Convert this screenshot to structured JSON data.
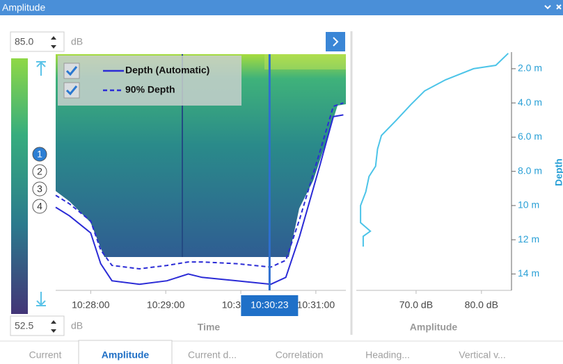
{
  "panel": {
    "title": "Amplitude"
  },
  "scale": {
    "max": "85.0",
    "min": "52.5",
    "unit": "dB",
    "markers": [
      "1",
      "2",
      "3",
      "4"
    ],
    "selected_marker": 0
  },
  "chart_data": [
    {
      "type": "echogram",
      "x_label": "Time",
      "xlim": [
        1652,
        1884
      ],
      "xticks": [
        {
          "value": 1680,
          "label": "10:28:00"
        },
        {
          "value": 1740,
          "label": "10:29:00"
        },
        {
          "value": 1800,
          "label": "10:30:00"
        },
        {
          "value": 1860,
          "label": "10:31:00"
        }
      ],
      "ylim": [
        0.5,
        15
      ],
      "y_inverted": true,
      "cursor": {
        "value": 1823,
        "label": "10:30:23"
      },
      "series": [
        {
          "name": "Depth (Automatic)",
          "color": "#2b2bd6",
          "dashed": false,
          "x": [
            1652,
            1663,
            1680,
            1688,
            1697,
            1719,
            1741,
            1758,
            1769,
            1797,
            1824,
            1836,
            1847,
            1863,
            1874,
            1882
          ],
          "values": [
            10.1,
            10.6,
            11.6,
            13.4,
            14.4,
            14.6,
            14.4,
            14.0,
            14.2,
            14.4,
            14.6,
            14.2,
            11.8,
            7.7,
            4.8,
            4.7
          ]
        },
        {
          "name": "90% Depth",
          "color": "#2b2bd6",
          "dashed": true,
          "x": [
            1652,
            1663,
            1680,
            1688,
            1697,
            1719,
            1741,
            1758,
            1769,
            1797,
            1824,
            1836,
            1847,
            1863,
            1874,
            1882
          ],
          "values": [
            9.4,
            9.9,
            10.9,
            12.6,
            13.5,
            13.7,
            13.5,
            13.3,
            13.3,
            13.4,
            13.6,
            13.2,
            10.8,
            6.9,
            4.2,
            4.0
          ]
        }
      ]
    },
    {
      "type": "line",
      "x_label": "Amplitude",
      "y_label": "Depth",
      "xlim": [
        60.85,
        84.6
      ],
      "xticks": [
        {
          "value": 70,
          "label": "70.0 dB"
        },
        {
          "value": 80,
          "label": "80.0 dB"
        }
      ],
      "ylim": [
        0.5,
        15
      ],
      "y_inverted": true,
      "yticks": [
        {
          "value": 2,
          "label": "2.0 m"
        },
        {
          "value": 4,
          "label": "4.0 m"
        },
        {
          "value": 6,
          "label": "6.0 m"
        },
        {
          "value": 8,
          "label": "8.0 m"
        },
        {
          "value": 10,
          "label": "10 m"
        },
        {
          "value": 12,
          "label": "12 m"
        },
        {
          "value": 14,
          "label": "14 m"
        }
      ],
      "series": [
        {
          "color": "#4cc4e8",
          "x": [
            84.1,
            82.2,
            78.8,
            74.5,
            71.3,
            69.2,
            67.0,
            64.7,
            64.1,
            63.8,
            62.8,
            62.3,
            61.5,
            61.5,
            63.0,
            61.9,
            61.9
          ],
          "values": [
            1.1,
            1.8,
            2.0,
            2.65,
            3.3,
            4.1,
            5.0,
            5.9,
            6.7,
            7.7,
            8.3,
            9.2,
            10.0,
            11.0,
            11.5,
            11.8,
            12.4
          ]
        }
      ]
    }
  ],
  "tabs": {
    "items": [
      "Current",
      "Amplitude",
      "Current d...",
      "Correlation",
      "Heading...",
      "Vertical v..."
    ],
    "active": 1
  }
}
